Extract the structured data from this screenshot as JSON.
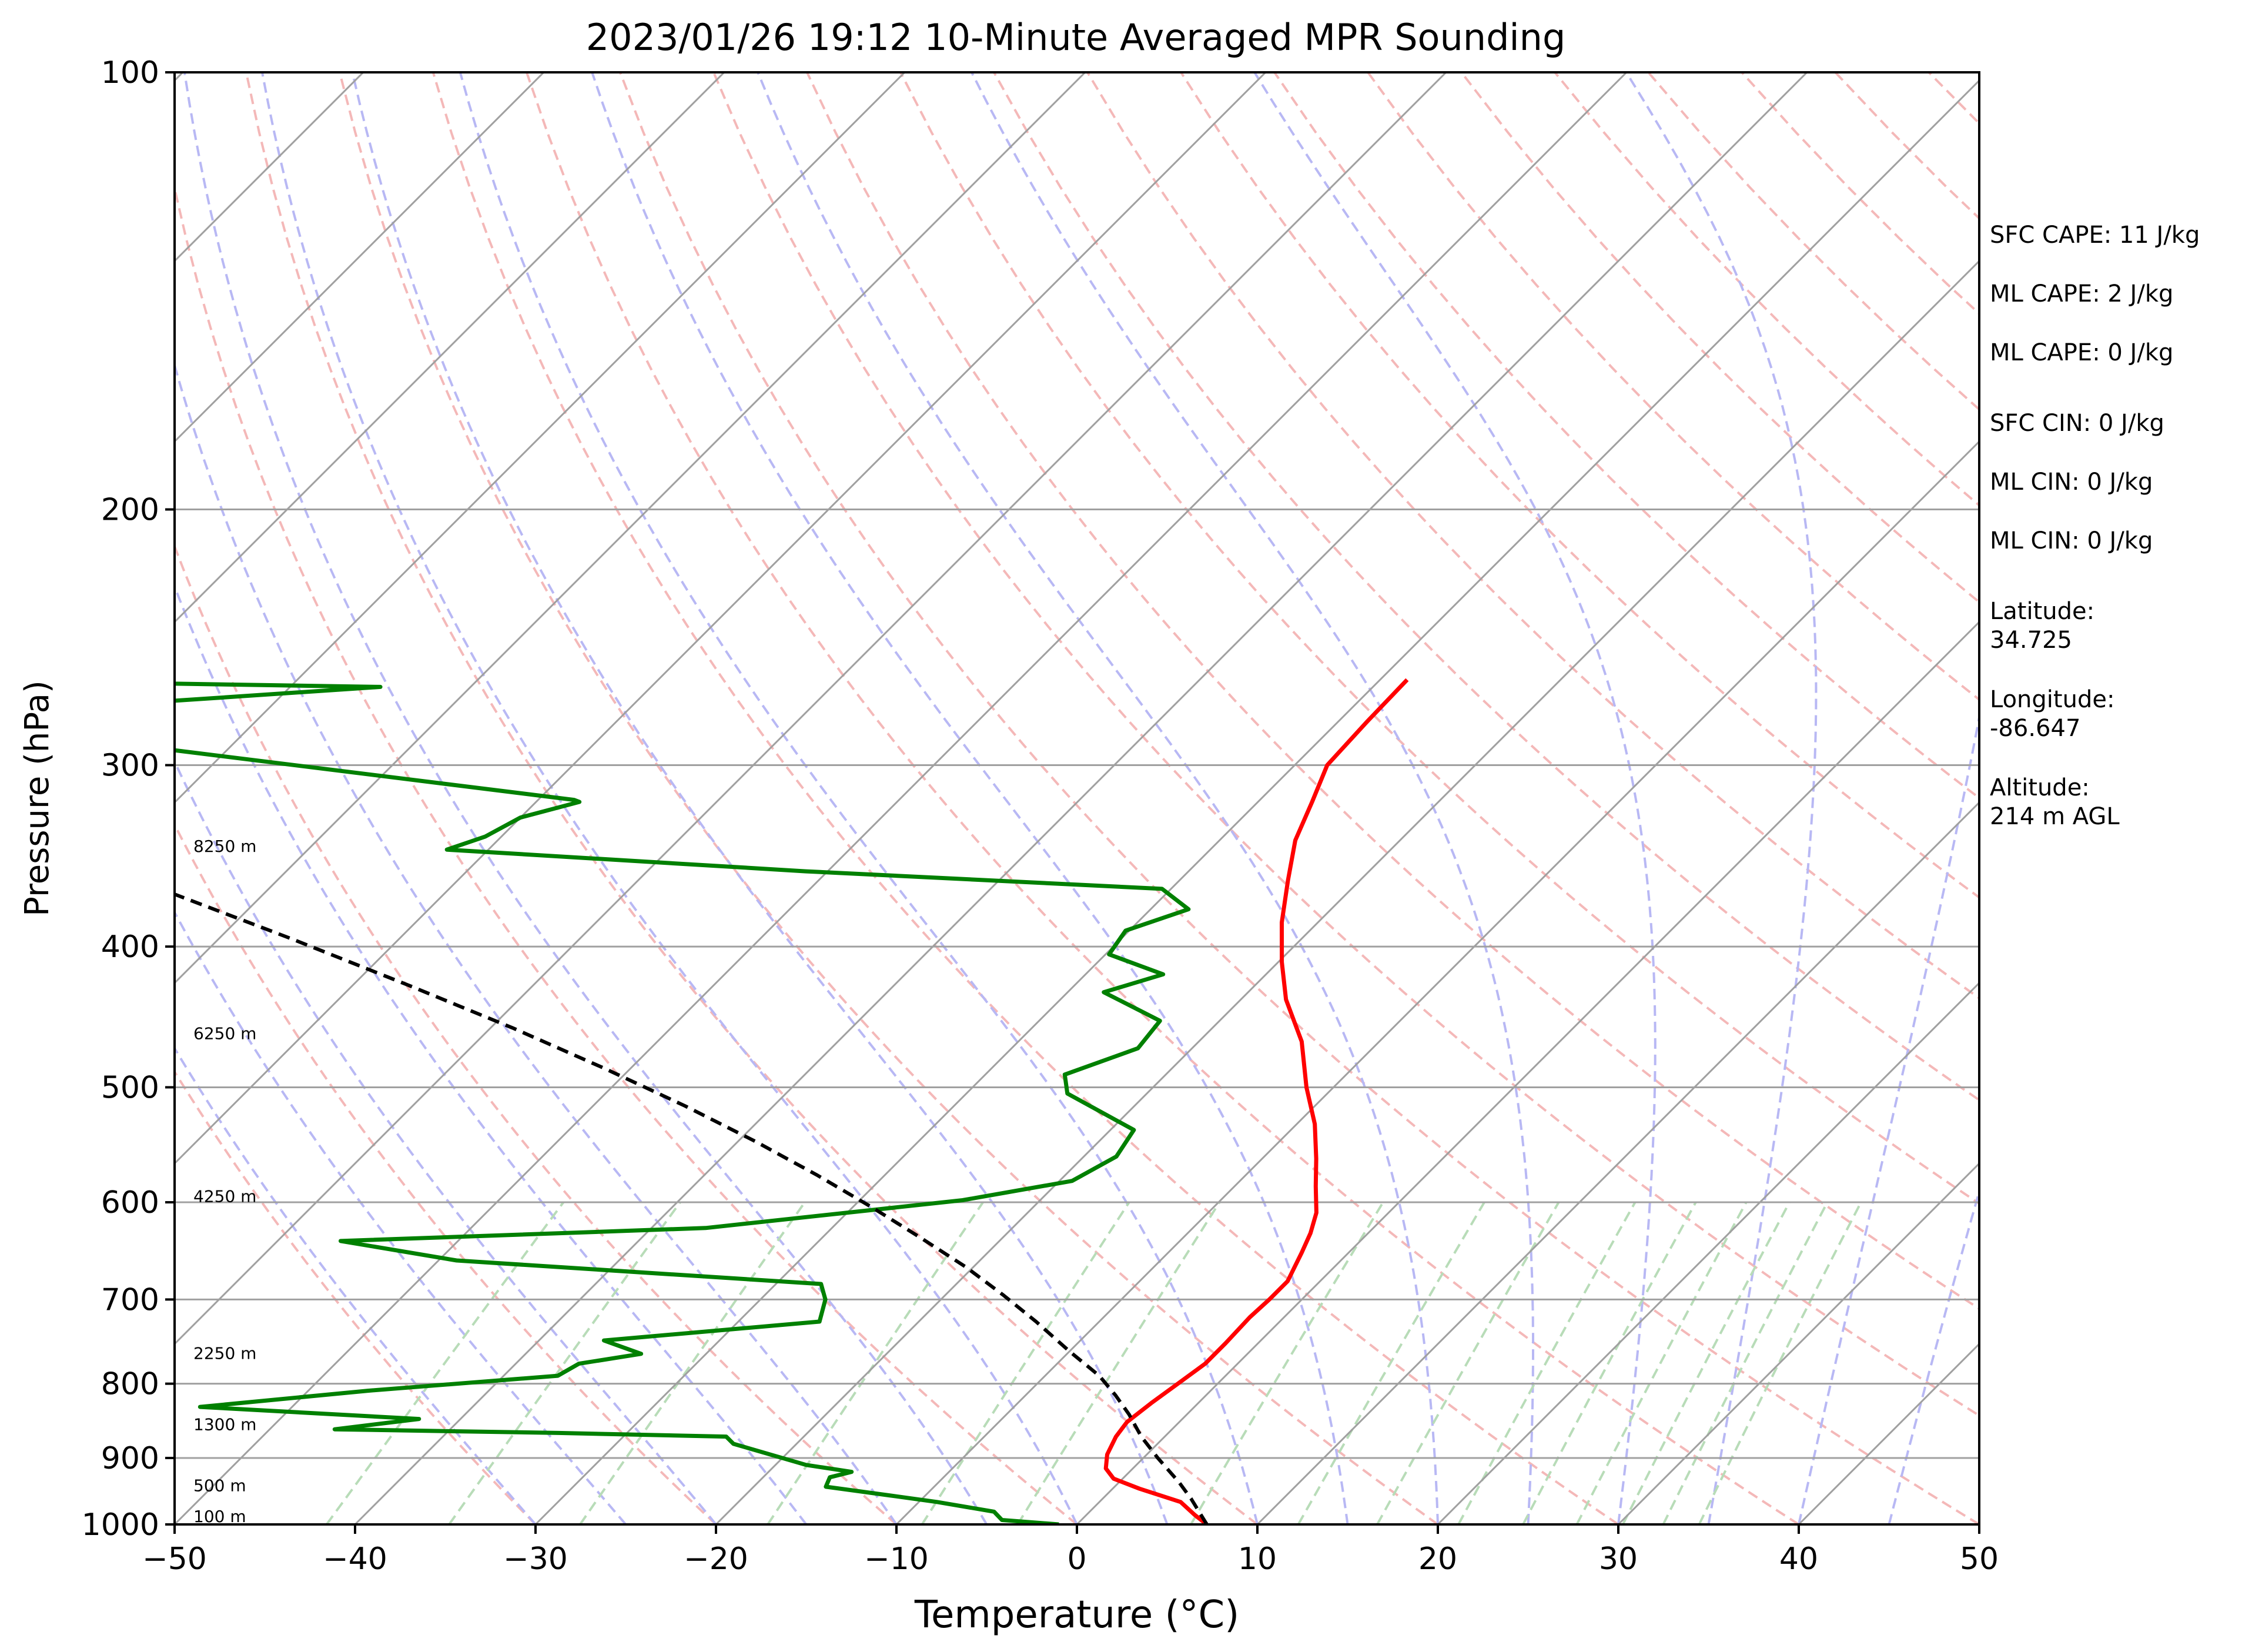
{
  "chart_data": {
    "type": "line",
    "title": "2023/01/26 19:12 10-Minute Averaged MPR Sounding",
    "xlabel": "Temperature (°C)",
    "ylabel": "Pressure (hPa)",
    "xlim": [
      -50,
      50
    ],
    "ylim": [
      1000,
      100
    ],
    "y_scale": "log",
    "skew_t": true,
    "x_ticks": [
      -50,
      -40,
      -30,
      -20,
      -10,
      0,
      10,
      20,
      30,
      40,
      50
    ],
    "x_tick_labels": [
      "−50",
      "−40",
      "−30",
      "−20",
      "−10",
      "0",
      "10",
      "20",
      "30",
      "40",
      "50"
    ],
    "y_ticks": [
      1000,
      900,
      800,
      700,
      600,
      500,
      400,
      300,
      200,
      100
    ],
    "y_tick_labels": [
      "1000",
      "900",
      "800",
      "700",
      "600",
      "500",
      "400",
      "300",
      "200",
      "100"
    ],
    "grid": true,
    "colors": {
      "temperature": "#ff0000",
      "dewpoint": "#008000",
      "parcel": "#000000",
      "isotherm": "#a0a0a0",
      "dry_adiabat": "#f4b8b8",
      "moist_adiabat": "#b8b8f4",
      "mixing_ratio": "#b8dcb8"
    },
    "series": [
      {
        "role": "temperature",
        "points": [
          [
            7.2,
            1000
          ],
          [
            6.0,
            985
          ],
          [
            4.5,
            965
          ],
          [
            1.5,
            945
          ],
          [
            -0.5,
            930
          ],
          [
            -1.5,
            915
          ],
          [
            -2.2,
            895
          ],
          [
            -2.7,
            870
          ],
          [
            -2.9,
            850
          ],
          [
            -2.6,
            825
          ],
          [
            -2.2,
            800
          ],
          [
            -1.8,
            775
          ],
          [
            -1.8,
            750
          ],
          [
            -1.9,
            720
          ],
          [
            -1.8,
            700
          ],
          [
            -1.8,
            680
          ],
          [
            -2.6,
            650
          ],
          [
            -3.2,
            630
          ],
          [
            -4.0,
            610
          ],
          [
            -5.5,
            585
          ],
          [
            -7.0,
            560
          ],
          [
            -9.0,
            530
          ],
          [
            -11.5,
            500
          ],
          [
            -14.3,
            465
          ],
          [
            -17.5,
            435
          ],
          [
            -19.8,
            410
          ],
          [
            -22.0,
            385
          ],
          [
            -24.0,
            360
          ],
          [
            -25.8,
            338
          ],
          [
            -27.0,
            318
          ],
          [
            -28.2,
            300
          ],
          [
            -28.4,
            280
          ],
          [
            -28.5,
            262
          ]
        ]
      },
      {
        "role": "dewpoint",
        "points": [
          [
            -1.0,
            1000
          ],
          [
            -4.4,
            993
          ],
          [
            -5.3,
            980
          ],
          [
            -9.0,
            965
          ],
          [
            -12.0,
            955
          ],
          [
            -16.0,
            942
          ],
          [
            -16.3,
            928
          ],
          [
            -15.4,
            920
          ],
          [
            -18.3,
            910
          ],
          [
            -23.5,
            880
          ],
          [
            -24.3,
            870
          ],
          [
            -33.8,
            865
          ],
          [
            -46.4,
            860
          ],
          [
            -42.3,
            846
          ],
          [
            -55.1,
            830
          ],
          [
            -46.7,
            809
          ],
          [
            -37.0,
            790
          ],
          [
            -36.5,
            775
          ],
          [
            -33.6,
            763
          ],
          [
            -36.4,
            747
          ],
          [
            -25.5,
            725
          ],
          [
            -26.4,
            700
          ],
          [
            -27.5,
            683
          ],
          [
            -49.0,
            658
          ],
          [
            -56.5,
            638
          ],
          [
            -37.0,
            625
          ],
          [
            -24.3,
            598
          ],
          [
            -19.3,
            580
          ],
          [
            -18.2,
            558
          ],
          [
            -18.7,
            535
          ],
          [
            -24.4,
            505
          ],
          [
            -25.6,
            490
          ],
          [
            -23.0,
            470
          ],
          [
            -23.3,
            450
          ],
          [
            -28.0,
            430
          ],
          [
            -25.7,
            418
          ],
          [
            -29.8,
            405
          ],
          [
            -30.2,
            390
          ],
          [
            -27.9,
            377
          ],
          [
            -30.5,
            365
          ],
          [
            -51.2,
            355
          ],
          [
            -72.3,
            343
          ],
          [
            -70.9,
            336
          ],
          [
            -70.0,
            326
          ],
          [
            -67.6,
            318
          ],
          [
            -68.0,
            317
          ],
          [
            -105.0,
            282
          ],
          [
            -103.0,
            275
          ],
          [
            -85.0,
            265
          ],
          [
            -102.0,
            263
          ]
        ]
      },
      {
        "role": "parcel",
        "points": [
          [
            7.2,
            1000
          ],
          [
            4.9,
            960
          ],
          [
            3.3,
            935
          ],
          [
            0.8,
            900
          ],
          [
            -1.3,
            870
          ],
          [
            -3.2,
            840
          ],
          [
            -5.0,
            815
          ],
          [
            -7.0,
            790
          ],
          [
            -10.0,
            760
          ],
          [
            -13.5,
            725
          ],
          [
            -16.8,
            695
          ],
          [
            -20.4,
            665
          ],
          [
            -24.5,
            635
          ],
          [
            -28.9,
            605
          ],
          [
            -33.7,
            575
          ],
          [
            -39.0,
            545
          ],
          [
            -44.9,
            515
          ],
          [
            -51.5,
            485
          ],
          [
            -58.8,
            455
          ],
          [
            -67.0,
            425
          ],
          [
            -76.0,
            395
          ],
          [
            -86.0,
            365
          ],
          [
            -96.9,
            335
          ],
          [
            -109.0,
            305
          ],
          [
            -121.5,
            277
          ],
          [
            -129.6,
            260
          ]
        ]
      }
    ],
    "height_labels": [
      {
        "text": "100 m",
        "pressure": 987
      },
      {
        "text": "500 m",
        "pressure": 940
      },
      {
        "text": "1300 m",
        "pressure": 853
      },
      {
        "text": "2250 m",
        "pressure": 762
      },
      {
        "text": "4250 m",
        "pressure": 594
      },
      {
        "text": "6250 m",
        "pressure": 459
      },
      {
        "text": "8250 m",
        "pressure": 341
      }
    ],
    "annotations": [
      "SFC CAPE: 11 J/kg",
      "ML CAPE: 2 J/kg",
      "ML CAPE: 0 J/kg",
      "SFC CIN: 0 J/kg",
      "ML CIN: 0 J/kg",
      "ML CIN: 0 J/kg",
      "Latitude:",
      "34.725",
      "Longitude:",
      "-86.647",
      "Altitude:",
      "214 m AGL"
    ]
  }
}
